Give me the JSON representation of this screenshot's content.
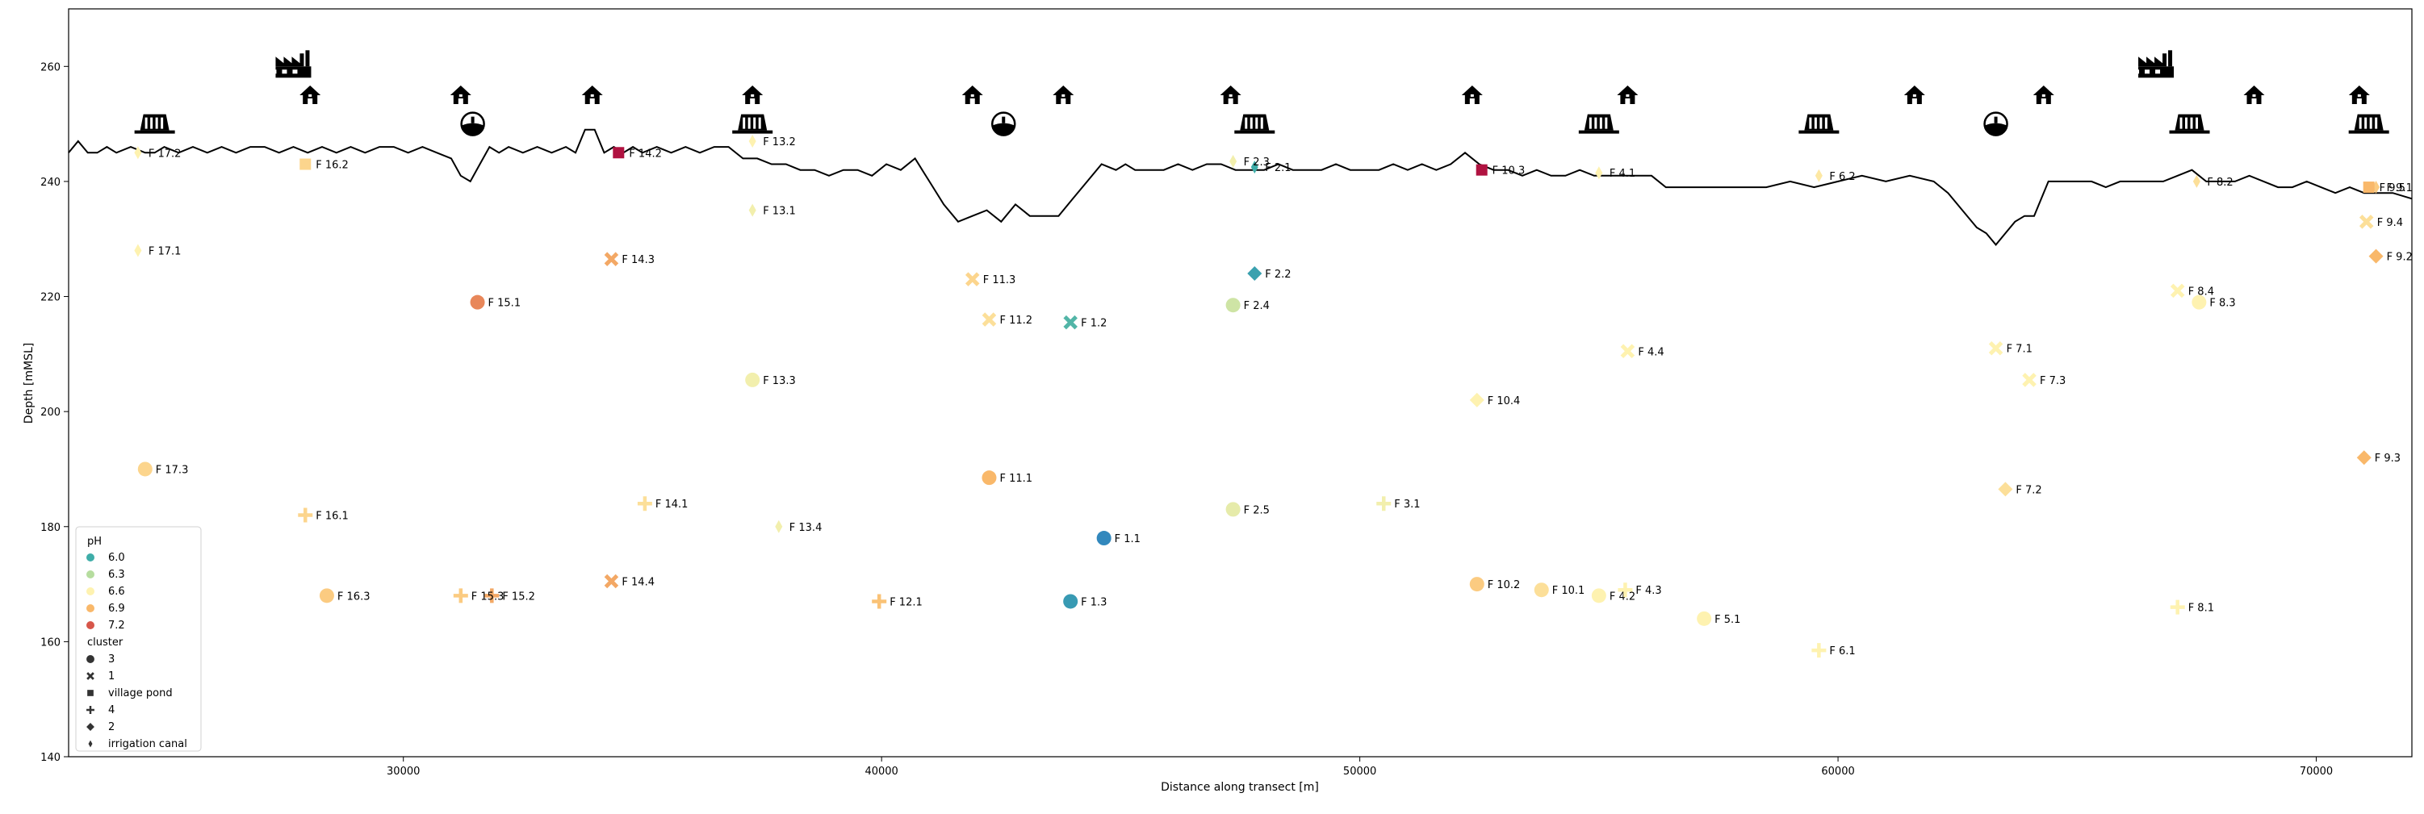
{
  "chart_data": {
    "type": "scatter",
    "title": "",
    "xlabel": "Distance along transect [m]",
    "ylabel": "Depth [mMSL]",
    "xlim": [
      23000,
      72000
    ],
    "ylim": [
      140,
      270
    ],
    "x_ticks": [
      30000,
      40000,
      50000,
      60000,
      70000
    ],
    "y_ticks": [
      140,
      160,
      180,
      200,
      220,
      240,
      260
    ],
    "grid": false,
    "legend": {
      "placement": "lower-left",
      "ph_title": "pH",
      "ph_entries": [
        {
          "label": "6.0",
          "color": "#3eada8"
        },
        {
          "label": "6.3",
          "color": "#b6dd9f"
        },
        {
          "label": "6.6",
          "color": "#fef2b0"
        },
        {
          "label": "6.9",
          "color": "#f9b86a"
        },
        {
          "label": "7.2",
          "color": "#d7564a"
        }
      ],
      "cluster_title": "cluster",
      "cluster_entries": [
        {
          "label": "3",
          "marker": "circle"
        },
        {
          "label": "1",
          "marker": "x"
        },
        {
          "label": "village pond",
          "marker": "square"
        },
        {
          "label": "4",
          "marker": "plus"
        },
        {
          "label": "2",
          "marker": "diamond"
        },
        {
          "label": "irrigation canal",
          "marker": "thin-diamond"
        }
      ]
    },
    "terrain_profile": {
      "x": [
        23000,
        23200,
        23400,
        23600,
        23800,
        24000,
        24300,
        24600,
        24800,
        25000,
        25300,
        25600,
        25900,
        26200,
        26500,
        26800,
        27100,
        27400,
        27700,
        28000,
        28300,
        28600,
        28900,
        29200,
        29500,
        29800,
        30100,
        30400,
        30700,
        31000,
        31200,
        31400,
        31600,
        31800,
        32000,
        32200,
        32500,
        32800,
        33100,
        33400,
        33600,
        33800,
        34000,
        34200,
        34400,
        34600,
        34800,
        35000,
        35300,
        35600,
        35900,
        36200,
        36500,
        36800,
        37100,
        37400,
        37700,
        38000,
        38300,
        38600,
        38900,
        39200,
        39500,
        39800,
        40100,
        40400,
        40700,
        41000,
        41300,
        41600,
        41900,
        42200,
        42500,
        42800,
        43100,
        43400,
        43700,
        44000,
        44300,
        44600,
        44900,
        45100,
        45300,
        45600,
        45900,
        46200,
        46500,
        46800,
        47100,
        47400,
        47700,
        48000,
        48300,
        48600,
        48900,
        49200,
        49500,
        49800,
        50100,
        50400,
        50700,
        51000,
        51300,
        51600,
        51900,
        52200,
        52500,
        52800,
        53100,
        53400,
        53700,
        54000,
        54300,
        54600,
        54900,
        55200,
        55500,
        55800,
        56100,
        56400,
        56700,
        57000,
        57500,
        58000,
        58500,
        59000,
        59500,
        60000,
        60500,
        61000,
        61500,
        62000,
        62300,
        62600,
        62900,
        63100,
        63300,
        63500,
        63700,
        63900,
        64100,
        64400,
        64700,
        65000,
        65300,
        65600,
        65900,
        66200,
        66500,
        66800,
        67100,
        67400,
        67700,
        68000,
        68300,
        68600,
        68900,
        69200,
        69500,
        69800,
        70100,
        70400,
        70700,
        71000,
        71300,
        71600,
        72000
      ],
      "y": [
        245,
        247,
        245,
        245,
        246,
        245,
        246,
        245,
        245,
        246,
        245,
        246,
        245,
        246,
        245,
        246,
        246,
        245,
        246,
        245,
        246,
        245,
        246,
        245,
        246,
        246,
        245,
        246,
        245,
        244,
        241,
        240,
        243,
        246,
        245,
        246,
        245,
        246,
        245,
        246,
        245,
        249,
        249,
        245,
        246,
        245,
        246,
        245,
        246,
        245,
        246,
        245,
        246,
        246,
        244,
        244,
        243,
        243,
        242,
        242,
        241,
        242,
        242,
        241,
        243,
        242,
        244,
        240,
        236,
        233,
        234,
        235,
        233,
        236,
        234,
        234,
        234,
        237,
        240,
        243,
        242,
        243,
        242,
        242,
        242,
        243,
        242,
        243,
        243,
        242,
        242,
        242,
        243,
        242,
        242,
        242,
        243,
        242,
        242,
        242,
        243,
        242,
        243,
        242,
        243,
        245,
        243,
        242,
        242,
        241,
        242,
        241,
        241,
        242,
        241,
        241,
        241,
        241,
        241,
        239,
        239,
        239,
        239,
        239,
        239,
        240,
        239,
        240,
        241,
        240,
        241,
        240,
        238,
        235,
        232,
        231,
        229,
        231,
        233,
        234,
        234,
        240,
        240,
        240,
        240,
        239,
        240,
        240,
        240,
        240,
        241,
        242,
        240,
        240,
        240,
        241,
        240,
        239,
        239,
        240,
        239,
        238,
        239,
        238,
        238,
        238,
        237
      ]
    },
    "points": [
      {
        "label": "F 1.1",
        "x": 44650,
        "y": 178,
        "cluster": "3",
        "ph": 5.7
      },
      {
        "label": "F 1.2",
        "x": 43950,
        "y": 215.5,
        "cluster": "1",
        "ph": 6.05
      },
      {
        "label": "F 1.3",
        "x": 43950,
        "y": 167,
        "cluster": "3",
        "ph": 5.85
      },
      {
        "label": "F 2.1",
        "x": 47800,
        "y": 242.5,
        "cluster": "irrigation canal",
        "ph": 6.0
      },
      {
        "label": "F 2.2",
        "x": 47800,
        "y": 224,
        "cluster": "2",
        "ph": 5.9
      },
      {
        "label": "F 2.3",
        "x": 47350,
        "y": 243.5,
        "cluster": "irrigation canal",
        "ph": 6.55
      },
      {
        "label": "F 2.4",
        "x": 47350,
        "y": 218.5,
        "cluster": "3",
        "ph": 6.4
      },
      {
        "label": "F 2.5",
        "x": 47350,
        "y": 183,
        "cluster": "3",
        "ph": 6.5
      },
      {
        "label": "F 3.1",
        "x": 50500,
        "y": 184,
        "cluster": "4",
        "ph": 6.55
      },
      {
        "label": "F 4.1",
        "x": 55000,
        "y": 241.5,
        "cluster": "irrigation canal",
        "ph": 6.6
      },
      {
        "label": "F 4.2",
        "x": 55000,
        "y": 168,
        "cluster": "3",
        "ph": 6.6
      },
      {
        "label": "F 4.3",
        "x": 55550,
        "y": 169,
        "cluster": "4",
        "ph": 6.6
      },
      {
        "label": "F 4.4",
        "x": 55600,
        "y": 210.5,
        "cluster": "1",
        "ph": 6.6
      },
      {
        "label": "F 5.1",
        "x": 57200,
        "y": 164,
        "cluster": "3",
        "ph": 6.6
      },
      {
        "label": "F 6.1",
        "x": 59600,
        "y": 158.5,
        "cluster": "4",
        "ph": 6.6
      },
      {
        "label": "F 6.2",
        "x": 59600,
        "y": 241,
        "cluster": "irrigation canal",
        "ph": 6.65
      },
      {
        "label": "F 7.1",
        "x": 63300,
        "y": 211,
        "cluster": "1",
        "ph": 6.6
      },
      {
        "label": "F 7.2",
        "x": 63500,
        "y": 186.5,
        "cluster": "2",
        "ph": 6.7
      },
      {
        "label": "F 7.3",
        "x": 64000,
        "y": 205.5,
        "cluster": "1",
        "ph": 6.6
      },
      {
        "label": "F 8.1",
        "x": 67100,
        "y": 166,
        "cluster": "4",
        "ph": 6.6
      },
      {
        "label": "F 8.2",
        "x": 67500,
        "y": 240,
        "cluster": "irrigation canal",
        "ph": 6.7
      },
      {
        "label": "F 8.3",
        "x": 67550,
        "y": 219,
        "cluster": "3",
        "ph": 6.6
      },
      {
        "label": "F 8.4",
        "x": 67100,
        "y": 221,
        "cluster": "1",
        "ph": 6.6
      },
      {
        "label": "F 9.1",
        "x": 71250,
        "y": 239,
        "cluster": "irrigation canal",
        "ph": 6.8
      },
      {
        "label": "F 9.2",
        "x": 71250,
        "y": 227,
        "cluster": "2",
        "ph": 6.9
      },
      {
        "label": "F 9.3",
        "x": 71000,
        "y": 192,
        "cluster": "2",
        "ph": 6.9
      },
      {
        "label": "F 9.4",
        "x": 71050,
        "y": 233,
        "cluster": "1",
        "ph": 6.7
      },
      {
        "label": "F 9.5",
        "x": 71100,
        "y": 239,
        "cluster": "village pond",
        "ph": 6.9
      },
      {
        "label": "F 10.1",
        "x": 53800,
        "y": 169,
        "cluster": "3",
        "ph": 6.7
      },
      {
        "label": "F 10.2",
        "x": 52450,
        "y": 170,
        "cluster": "3",
        "ph": 6.8
      },
      {
        "label": "F 10.3",
        "x": 52550,
        "y": 242,
        "cluster": "village pond",
        "ph": 7.8
      },
      {
        "label": "F 10.4",
        "x": 52450,
        "y": 202,
        "cluster": "2",
        "ph": 6.6
      },
      {
        "label": "F 11.1",
        "x": 42250,
        "y": 188.5,
        "cluster": "3",
        "ph": 6.9
      },
      {
        "label": "F 11.2",
        "x": 42250,
        "y": 216,
        "cluster": "1",
        "ph": 6.7
      },
      {
        "label": "F 11.3",
        "x": 41900,
        "y": 223,
        "cluster": "1",
        "ph": 6.75
      },
      {
        "label": "F 12.1",
        "x": 39950,
        "y": 167,
        "cluster": "4",
        "ph": 6.85
      },
      {
        "label": "F 13.1",
        "x": 37300,
        "y": 235,
        "cluster": "irrigation canal",
        "ph": 6.55
      },
      {
        "label": "F 13.2",
        "x": 37300,
        "y": 247,
        "cluster": "irrigation canal",
        "ph": 6.6
      },
      {
        "label": "F 13.3",
        "x": 37300,
        "y": 205.5,
        "cluster": "3",
        "ph": 6.55
      },
      {
        "label": "F 13.4",
        "x": 37850,
        "y": 180,
        "cluster": "irrigation canal",
        "ph": 6.55
      },
      {
        "label": "F 14.1",
        "x": 35050,
        "y": 184,
        "cluster": "4",
        "ph": 6.7
      },
      {
        "label": "F 14.2",
        "x": 34500,
        "y": 245,
        "cluster": "village pond",
        "ph": 7.8
      },
      {
        "label": "F 14.3",
        "x": 34350,
        "y": 226.5,
        "cluster": "1",
        "ph": 6.95
      },
      {
        "label": "F 14.4",
        "x": 34350,
        "y": 170.5,
        "cluster": "1",
        "ph": 6.95
      },
      {
        "label": "F 15.1",
        "x": 31550,
        "y": 219,
        "cluster": "3",
        "ph": 7.05
      },
      {
        "label": "F 15.2",
        "x": 31850,
        "y": 168,
        "cluster": "4",
        "ph": 6.95
      },
      {
        "label": "F 15.3",
        "x": 31200,
        "y": 168,
        "cluster": "4",
        "ph": 6.8
      },
      {
        "label": "F 16.1",
        "x": 27950,
        "y": 182,
        "cluster": "4",
        "ph": 6.75
      },
      {
        "label": "F 16.2",
        "x": 27950,
        "y": 243,
        "cluster": "village pond",
        "ph": 6.75
      },
      {
        "label": "F 16.3",
        "x": 28400,
        "y": 168,
        "cluster": "3",
        "ph": 6.8
      },
      {
        "label": "F 17.1",
        "x": 24450,
        "y": 228,
        "cluster": "irrigation canal",
        "ph": 6.6
      },
      {
        "label": "F 17.2",
        "x": 24450,
        "y": 245,
        "cluster": "irrigation canal",
        "ph": 6.6
      },
      {
        "label": "F 17.3",
        "x": 24600,
        "y": 190,
        "cluster": "3",
        "ph": 6.75
      }
    ],
    "icons": [
      {
        "kind": "factory-icon",
        "x": 27700,
        "y": 260
      },
      {
        "kind": "house-icon",
        "x": 28050,
        "y": 255
      },
      {
        "kind": "dam-icon",
        "x": 24800,
        "y": 250
      },
      {
        "kind": "house-icon",
        "x": 31200,
        "y": 255
      },
      {
        "kind": "water-well-icon",
        "x": 31450,
        "y": 250
      },
      {
        "kind": "house-icon",
        "x": 33950,
        "y": 255
      },
      {
        "kind": "house-icon",
        "x": 37300,
        "y": 255
      },
      {
        "kind": "dam-icon",
        "x": 37300,
        "y": 250
      },
      {
        "kind": "house-icon",
        "x": 41900,
        "y": 255
      },
      {
        "kind": "water-well-icon",
        "x": 42550,
        "y": 250
      },
      {
        "kind": "house-icon",
        "x": 43800,
        "y": 255
      },
      {
        "kind": "house-icon",
        "x": 47300,
        "y": 255
      },
      {
        "kind": "dam-icon",
        "x": 47800,
        "y": 250
      },
      {
        "kind": "house-icon",
        "x": 52350,
        "y": 255
      },
      {
        "kind": "house-icon",
        "x": 55600,
        "y": 255
      },
      {
        "kind": "dam-icon",
        "x": 55000,
        "y": 250
      },
      {
        "kind": "dam-icon",
        "x": 59600,
        "y": 250
      },
      {
        "kind": "house-icon",
        "x": 61600,
        "y": 255
      },
      {
        "kind": "water-well-icon",
        "x": 63300,
        "y": 250
      },
      {
        "kind": "house-icon",
        "x": 64300,
        "y": 255
      },
      {
        "kind": "factory-icon",
        "x": 66650,
        "y": 260
      },
      {
        "kind": "dam-icon",
        "x": 67350,
        "y": 250
      },
      {
        "kind": "house-icon",
        "x": 68700,
        "y": 255
      },
      {
        "kind": "house-icon",
        "x": 70900,
        "y": 255
      },
      {
        "kind": "dam-icon",
        "x": 71100,
        "y": 250
      }
    ]
  }
}
